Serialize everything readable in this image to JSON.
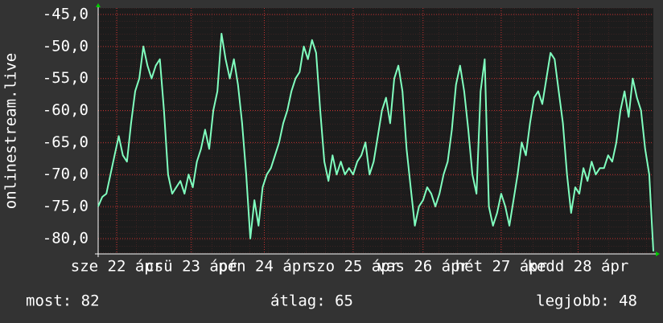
{
  "chart_data": {
    "type": "line",
    "y_label": "onlinestream.live",
    "series": [
      {
        "color": "#80ffbf",
        "values": [
          -75,
          -73.5,
          -73,
          -70,
          -67,
          -64,
          -67,
          -68,
          -62,
          -57,
          -55,
          -50,
          -53,
          -55,
          -53,
          -52,
          -60,
          -70,
          -73,
          -72,
          -71,
          -73,
          -70,
          -72,
          -68,
          -66,
          -63,
          -66,
          -60,
          -57,
          -48,
          -52,
          -55,
          -52,
          -56,
          -62,
          -70,
          -80,
          -74,
          -78,
          -72,
          -70,
          -69,
          -67,
          -65,
          -62,
          -60,
          -57,
          -55,
          -54,
          -50,
          -52,
          -49,
          -51,
          -60,
          -68,
          -71,
          -67,
          -70,
          -68,
          -70,
          -69,
          -70,
          -68,
          -67,
          -65,
          -70,
          -68,
          -64,
          -60,
          -58,
          -62,
          -55,
          -53,
          -57,
          -66,
          -72,
          -78,
          -75,
          -74,
          -72,
          -73,
          -75,
          -73,
          -70,
          -68,
          -63,
          -56,
          -53,
          -57,
          -63,
          -70,
          -73,
          -57,
          -52,
          -75,
          -78,
          -76,
          -73,
          -75,
          -78,
          -74,
          -70,
          -65,
          -67,
          -62,
          -58,
          -57,
          -59,
          -55,
          -51,
          -52,
          -57,
          -62,
          -70,
          -76,
          -72,
          -73,
          -69,
          -71,
          -68,
          -70,
          -69,
          -69,
          -67,
          -68,
          -65,
          -60,
          -57,
          -61,
          -55,
          -58,
          -60,
          -66,
          -70,
          -82
        ]
      }
    ],
    "xlim": [
      0,
      135
    ],
    "xticks": [
      {
        "value": 4.5,
        "label": "sze 22 ápr"
      },
      {
        "value": 22.6,
        "label": "csü 23 ápr"
      },
      {
        "value": 40.4,
        "label": "pén 24 ápr"
      },
      {
        "value": 62,
        "label": "szo 25 ápr"
      },
      {
        "value": 79,
        "label": "vas 26 ápr"
      },
      {
        "value": 98,
        "label": "hét 27 ápr"
      },
      {
        "value": 116.7,
        "label": "kedd 28 ápr"
      }
    ],
    "ylim": [
      -82.4,
      -44.0
    ],
    "yticks": [
      {
        "value": -45,
        "label": "-45,0"
      },
      {
        "value": -50,
        "label": "-50,0"
      },
      {
        "value": -55,
        "label": "-55,0"
      },
      {
        "value": -60,
        "label": "-60,0"
      },
      {
        "value": -65,
        "label": "-65,0"
      },
      {
        "value": -70,
        "label": "-70,0"
      },
      {
        "value": -75,
        "label": "-75,0"
      },
      {
        "value": -80,
        "label": "-80,0"
      }
    ],
    "grid": true,
    "footer": {
      "current": "most: 82",
      "average": "átlag: 65",
      "best": "legjobb: 48"
    }
  }
}
